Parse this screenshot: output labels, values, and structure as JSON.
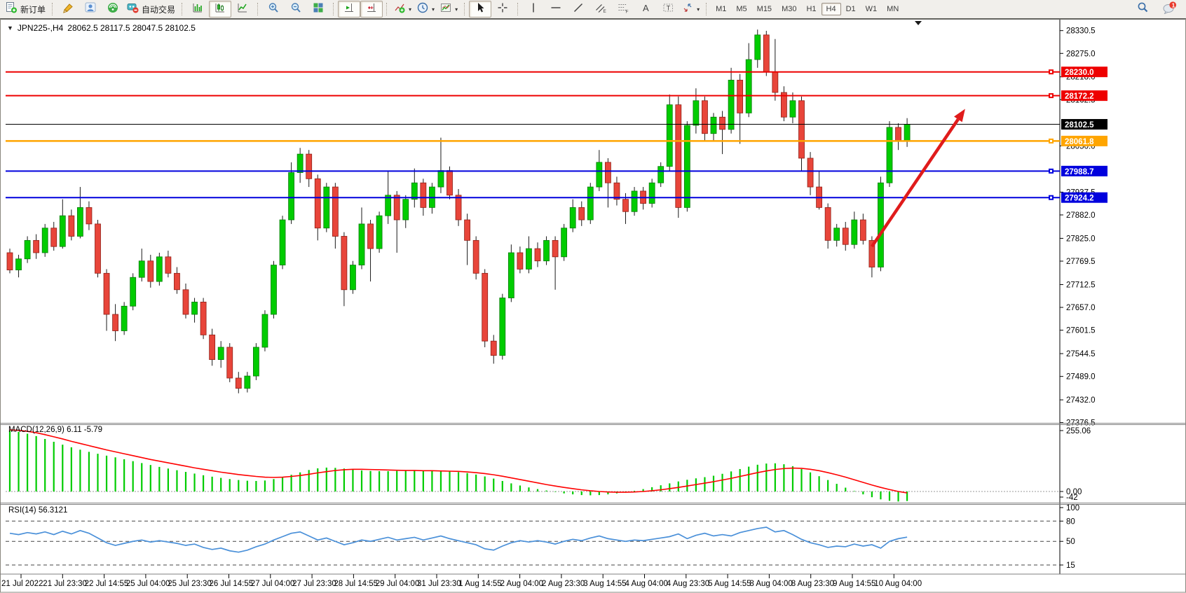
{
  "window": {
    "title_symbol": "JPN225-,H4",
    "title_ohlc": "28062.5 28117.5 28047.5 28102.5"
  },
  "toolbar": {
    "new_order_label": "新订单",
    "auto_trading_label": "自动交易",
    "timeframes": [
      "M1",
      "M5",
      "M15",
      "M30",
      "H1",
      "H4",
      "D1",
      "W1",
      "MN"
    ],
    "active_timeframe": "H4",
    "notification_badge": "1"
  },
  "price_axis": {
    "ticks": [
      28330.5,
      28275.0,
      28218.0,
      28162.5,
      28050.0,
      27937.5,
      27882.0,
      27825.0,
      27769.5,
      27712.5,
      27657.0,
      27601.5,
      27544.5,
      27489.0,
      27432.0,
      27376.5
    ]
  },
  "hlines": [
    {
      "price": 28230.0,
      "label": "28230.0",
      "color": "#ee0000",
      "width": 2
    },
    {
      "price": 28172.2,
      "label": "28172.2",
      "color": "#ee0000",
      "width": 2
    },
    {
      "price": 28102.5,
      "label": "28102.5",
      "color": "#000000",
      "width": 1
    },
    {
      "price": 28061.8,
      "label": "28061.8",
      "color": "#ffa500",
      "width": 2.5
    },
    {
      "price": 27988.7,
      "label": "27988.7",
      "color": "#0000dd",
      "width": 2
    },
    {
      "price": 27924.2,
      "label": "27924.2",
      "color": "#0000dd",
      "width": 2
    }
  ],
  "time_axis": {
    "labels": [
      "21 Jul 2022",
      "21 Jul 23:30",
      "22 Jul 14:55",
      "25 Jul 04:00",
      "25 Jul 23:30",
      "26 Jul 14:55",
      "27 Jul 04:00",
      "27 Jul 23:30",
      "28 Jul 14:55",
      "29 Jul 04:00",
      "31 Jul 23:30",
      "1 Aug 14:55",
      "2 Aug 04:00",
      "2 Aug 23:30",
      "3 Aug 14:55",
      "4 Aug 04:00",
      "4 Aug 23:30",
      "5 Aug 14:55",
      "8 Aug 04:00",
      "8 Aug 23:30",
      "9 Aug 14:55",
      "10 Aug 04:00"
    ]
  },
  "macd": {
    "label": "MACD(12,26,9) 6.11 -5.79",
    "axis_top": "255.06",
    "axis_zero": "0.00",
    "axis_bottom": "-42"
  },
  "rsi": {
    "label": "RSI(14) 56.3121",
    "levels": [
      100,
      80,
      50,
      15
    ],
    "dashed_levels": [
      80,
      50,
      15
    ]
  },
  "annotation_arrow": {
    "from_bar": 98,
    "from_price": 27805,
    "to_bar": 108.6,
    "to_price": 28140,
    "color": "#e01b1b"
  },
  "colors": {
    "up": "#00cc00",
    "up_edge": "#0a7a0a",
    "down": "#e8453a",
    "down_edge": "#8f1f16",
    "macd_hist": "#00cc00",
    "macd_signal": "#ff0000",
    "rsi_line": "#4a90d9"
  },
  "chart_data": {
    "type": "candlestick",
    "symbol": "JPN225-",
    "timeframe": "H4",
    "price_range": [
      27376.5,
      28330.5
    ],
    "candles": [
      [
        27790,
        27800,
        27740,
        27748
      ],
      [
        27748,
        27785,
        27730,
        27775
      ],
      [
        27775,
        27830,
        27765,
        27820
      ],
      [
        27820,
        27835,
        27775,
        27790
      ],
      [
        27790,
        27860,
        27780,
        27850
      ],
      [
        27850,
        27865,
        27795,
        27805
      ],
      [
        27805,
        27920,
        27800,
        27880
      ],
      [
        27880,
        27895,
        27820,
        27830
      ],
      [
        27830,
        27950,
        27825,
        27900
      ],
      [
        27900,
        27915,
        27845,
        27860
      ],
      [
        27860,
        27870,
        27730,
        27740
      ],
      [
        27740,
        27750,
        27600,
        27640
      ],
      [
        27640,
        27665,
        27575,
        27600
      ],
      [
        27600,
        27670,
        27590,
        27660
      ],
      [
        27660,
        27740,
        27650,
        27730
      ],
      [
        27730,
        27800,
        27720,
        27770
      ],
      [
        27770,
        27785,
        27705,
        27720
      ],
      [
        27720,
        27790,
        27710,
        27780
      ],
      [
        27780,
        27795,
        27730,
        27740
      ],
      [
        27740,
        27755,
        27690,
        27700
      ],
      [
        27700,
        27715,
        27630,
        27640
      ],
      [
        27640,
        27680,
        27620,
        27670
      ],
      [
        27670,
        27680,
        27580,
        27590
      ],
      [
        27590,
        27605,
        27515,
        27530
      ],
      [
        27530,
        27575,
        27510,
        27560
      ],
      [
        27560,
        27570,
        27475,
        27485
      ],
      [
        27485,
        27500,
        27448,
        27460
      ],
      [
        27460,
        27500,
        27450,
        27490
      ],
      [
        27490,
        27570,
        27480,
        27560
      ],
      [
        27560,
        27650,
        27550,
        27640
      ],
      [
        27640,
        27770,
        27630,
        27760
      ],
      [
        27760,
        27880,
        27750,
        27870
      ],
      [
        27870,
        28010,
        27860,
        27985
      ],
      [
        27985,
        28045,
        27960,
        28030
      ],
      [
        28030,
        28040,
        27950,
        27970
      ],
      [
        27970,
        27980,
        27820,
        27850
      ],
      [
        27850,
        27960,
        27840,
        27950
      ],
      [
        27950,
        27960,
        27800,
        27830
      ],
      [
        27830,
        27840,
        27660,
        27700
      ],
      [
        27700,
        27770,
        27690,
        27760
      ],
      [
        27760,
        27900,
        27750,
        27860
      ],
      [
        27860,
        27870,
        27720,
        27800
      ],
      [
        27800,
        27890,
        27790,
        27880
      ],
      [
        27880,
        27990,
        27860,
        27930
      ],
      [
        27930,
        27940,
        27790,
        27870
      ],
      [
        27870,
        27930,
        27850,
        27920
      ],
      [
        27920,
        27995,
        27900,
        27960
      ],
      [
        27960,
        27970,
        27880,
        27900
      ],
      [
        27900,
        27960,
        27885,
        27950
      ],
      [
        27950,
        28070,
        27935,
        27990
      ],
      [
        27990,
        28000,
        27920,
        27930
      ],
      [
        27930,
        27945,
        27855,
        27870
      ],
      [
        27870,
        27885,
        27760,
        27820
      ],
      [
        27820,
        27830,
        27725,
        27740
      ],
      [
        27740,
        27750,
        27560,
        27575
      ],
      [
        27575,
        27590,
        27520,
        27540
      ],
      [
        27540,
        27690,
        27530,
        27680
      ],
      [
        27680,
        27810,
        27670,
        27790
      ],
      [
        27790,
        27805,
        27740,
        27750
      ],
      [
        27750,
        27830,
        27740,
        27800
      ],
      [
        27800,
        27815,
        27755,
        27770
      ],
      [
        27770,
        27830,
        27760,
        27820
      ],
      [
        27820,
        27830,
        27700,
        27780
      ],
      [
        27780,
        27860,
        27770,
        27850
      ],
      [
        27850,
        27920,
        27840,
        27900
      ],
      [
        27900,
        27915,
        27855,
        27870
      ],
      [
        27870,
        27960,
        27860,
        27950
      ],
      [
        27950,
        28040,
        27940,
        28010
      ],
      [
        28010,
        28020,
        27900,
        27960
      ],
      [
        27960,
        27975,
        27905,
        27920
      ],
      [
        27920,
        27935,
        27860,
        27890
      ],
      [
        27890,
        27950,
        27880,
        27940
      ],
      [
        27940,
        27950,
        27895,
        27910
      ],
      [
        27910,
        27970,
        27900,
        27960
      ],
      [
        27960,
        28010,
        27950,
        28000
      ],
      [
        28000,
        28175,
        27990,
        28150
      ],
      [
        28150,
        28170,
        27875,
        27900
      ],
      [
        27900,
        28110,
        27890,
        28100
      ],
      [
        28100,
        28190,
        28080,
        28160
      ],
      [
        28160,
        28170,
        28060,
        28080
      ],
      [
        28080,
        28130,
        28060,
        28120
      ],
      [
        28120,
        28135,
        28030,
        28090
      ],
      [
        28090,
        28240,
        28080,
        28210
      ],
      [
        28210,
        28225,
        28055,
        28130
      ],
      [
        28130,
        28300,
        28120,
        28260
      ],
      [
        28260,
        28333,
        28240,
        28320
      ],
      [
        28320,
        28330,
        28220,
        28230
      ],
      [
        28230,
        28310,
        28160,
        28180
      ],
      [
        28180,
        28195,
        28110,
        28120
      ],
      [
        28120,
        28180,
        28105,
        28160
      ],
      [
        28160,
        28170,
        27990,
        28020
      ],
      [
        28020,
        28035,
        27930,
        27950
      ],
      [
        27950,
        27990,
        27895,
        27900
      ],
      [
        27900,
        27910,
        27800,
        27820
      ],
      [
        27820,
        27860,
        27805,
        27850
      ],
      [
        27850,
        27865,
        27795,
        27810
      ],
      [
        27810,
        27890,
        27800,
        27870
      ],
      [
        27870,
        27885,
        27810,
        27820
      ],
      [
        27820,
        27830,
        27730,
        27755
      ],
      [
        27755,
        27975,
        27745,
        27960
      ],
      [
        27960,
        28110,
        27950,
        28095
      ],
      [
        28095,
        28105,
        28040,
        28062
      ],
      [
        28062.5,
        28117.5,
        28047.5,
        28102.5
      ]
    ],
    "macd_hist": [
      255,
      250,
      242,
      232,
      220,
      208,
      196,
      185,
      175,
      166,
      158,
      150,
      143,
      135,
      127,
      119,
      111,
      103,
      96,
      89,
      82,
      75,
      68,
      62,
      57,
      52,
      48,
      45,
      44,
      46,
      52,
      60,
      70,
      80,
      90,
      97,
      100,
      99,
      96,
      92,
      88,
      86,
      85,
      85,
      86,
      87,
      88,
      88,
      87,
      86,
      84,
      81,
      77,
      71,
      63,
      54,
      44,
      34,
      25,
      17,
      10,
      4,
      -2,
      -8,
      -12,
      -15,
      -16,
      -15,
      -12,
      -8,
      -3,
      3,
      10,
      18,
      26,
      34,
      42,
      49,
      55,
      60,
      66,
      74,
      84,
      94,
      104,
      112,
      117,
      118,
      114,
      106,
      94,
      80,
      64,
      48,
      32,
      16,
      2,
      -12,
      -24,
      -33,
      -39,
      -42,
      -40
    ],
    "macd_signal": [
      258,
      256,
      252,
      246,
      238,
      229,
      220,
      210,
      201,
      192,
      183,
      174,
      166,
      158,
      150,
      142,
      134,
      127,
      120,
      113,
      106,
      99,
      93,
      87,
      81,
      76,
      71,
      67,
      63,
      60,
      59,
      60,
      63,
      67,
      72,
      78,
      83,
      88,
      91,
      93,
      93,
      92,
      91,
      90,
      89,
      88,
      88,
      87,
      87,
      86,
      85,
      84,
      82,
      79,
      75,
      70,
      64,
      57,
      50,
      43,
      36,
      29,
      23,
      17,
      12,
      7,
      3,
      0,
      -2,
      -3,
      -3,
      -2,
      0,
      3,
      7,
      12,
      17,
      23,
      29,
      35,
      41,
      48,
      55,
      63,
      71,
      79,
      86,
      92,
      96,
      98,
      97,
      93,
      87,
      79,
      70,
      60,
      49,
      38,
      27,
      17,
      8,
      0,
      -6
    ],
    "rsi": [
      62,
      60,
      63,
      61,
      64,
      60,
      65,
      61,
      66,
      62,
      55,
      48,
      44,
      47,
      50,
      52,
      49,
      51,
      49,
      47,
      44,
      46,
      41,
      38,
      40,
      36,
      34,
      37,
      42,
      46,
      52,
      57,
      62,
      64,
      58,
      52,
      55,
      50,
      45,
      48,
      52,
      50,
      53,
      56,
      52,
      54,
      56,
      52,
      55,
      58,
      54,
      51,
      48,
      45,
      39,
      37,
      43,
      48,
      51,
      49,
      51,
      49,
      46,
      50,
      53,
      51,
      55,
      58,
      54,
      52,
      50,
      52,
      51,
      53,
      55,
      57,
      61,
      54,
      59,
      62,
      58,
      60,
      58,
      63,
      66,
      69,
      71,
      64,
      66,
      60,
      53,
      48,
      45,
      41,
      43,
      42,
      46,
      43,
      45,
      40,
      50,
      54,
      56.3
    ]
  }
}
